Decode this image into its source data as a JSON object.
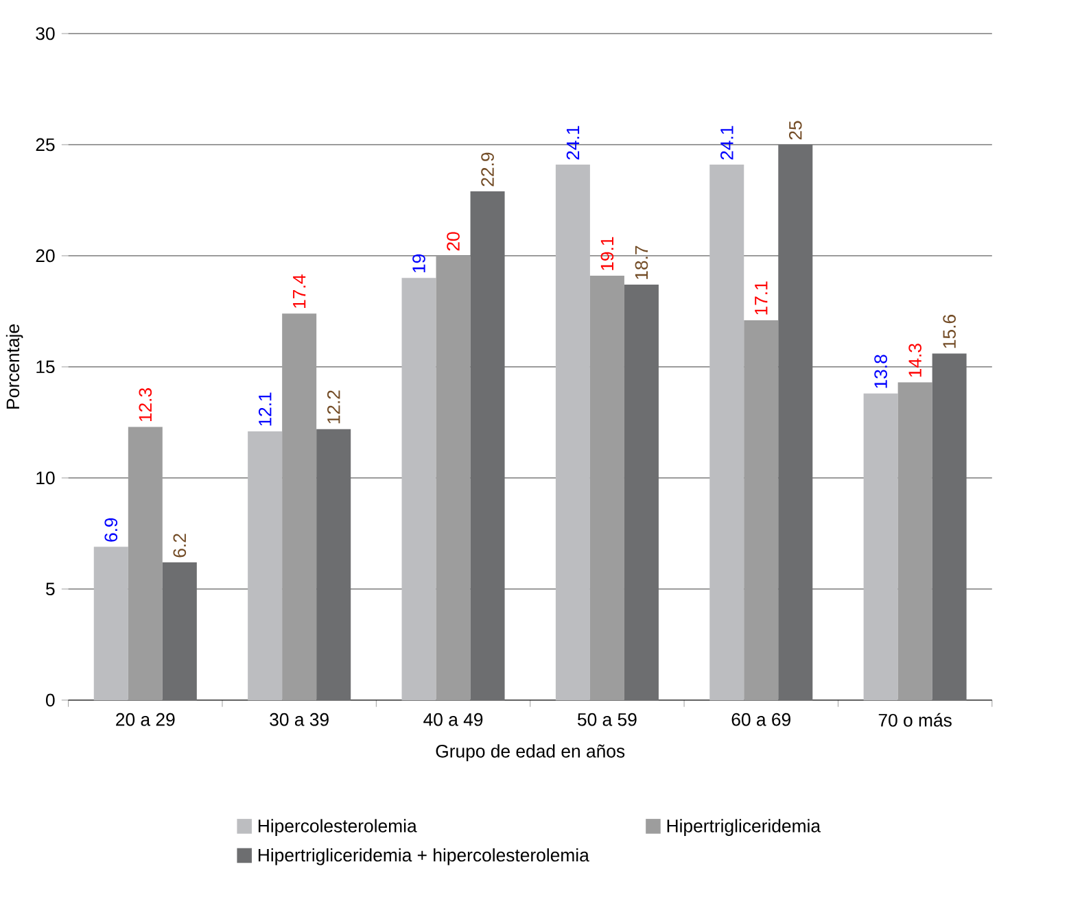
{
  "chart_data": {
    "type": "bar",
    "xlabel": "Grupo de edad en años",
    "ylabel": "Porcentaje",
    "categories": [
      "20 a 29",
      "30 a 39",
      "40 a 49",
      "50 a 59",
      "60 a 69",
      "70 o más"
    ],
    "series": [
      {
        "name": "Hipercolesterolemia",
        "color": "#bcbdc0",
        "values": [
          6.9,
          12.1,
          19,
          24.1,
          24.1,
          13.8
        ]
      },
      {
        "name": "Hipertrigliceridemia",
        "color": "#9d9d9d",
        "values": [
          12.3,
          17.4,
          20,
          19.1,
          17.1,
          14.3
        ]
      },
      {
        "name": "Hipertrigliceridemia + hipercolesterolemia",
        "color": "#6d6e70",
        "values": [
          6.2,
          12.2,
          22.9,
          18.7,
          25,
          15.6
        ]
      }
    ],
    "ylim": [
      0,
      30
    ],
    "yticks": [
      0,
      5,
      10,
      15,
      20,
      25,
      30
    ],
    "grid": "y",
    "legend": "bottom",
    "data_labels": true
  }
}
